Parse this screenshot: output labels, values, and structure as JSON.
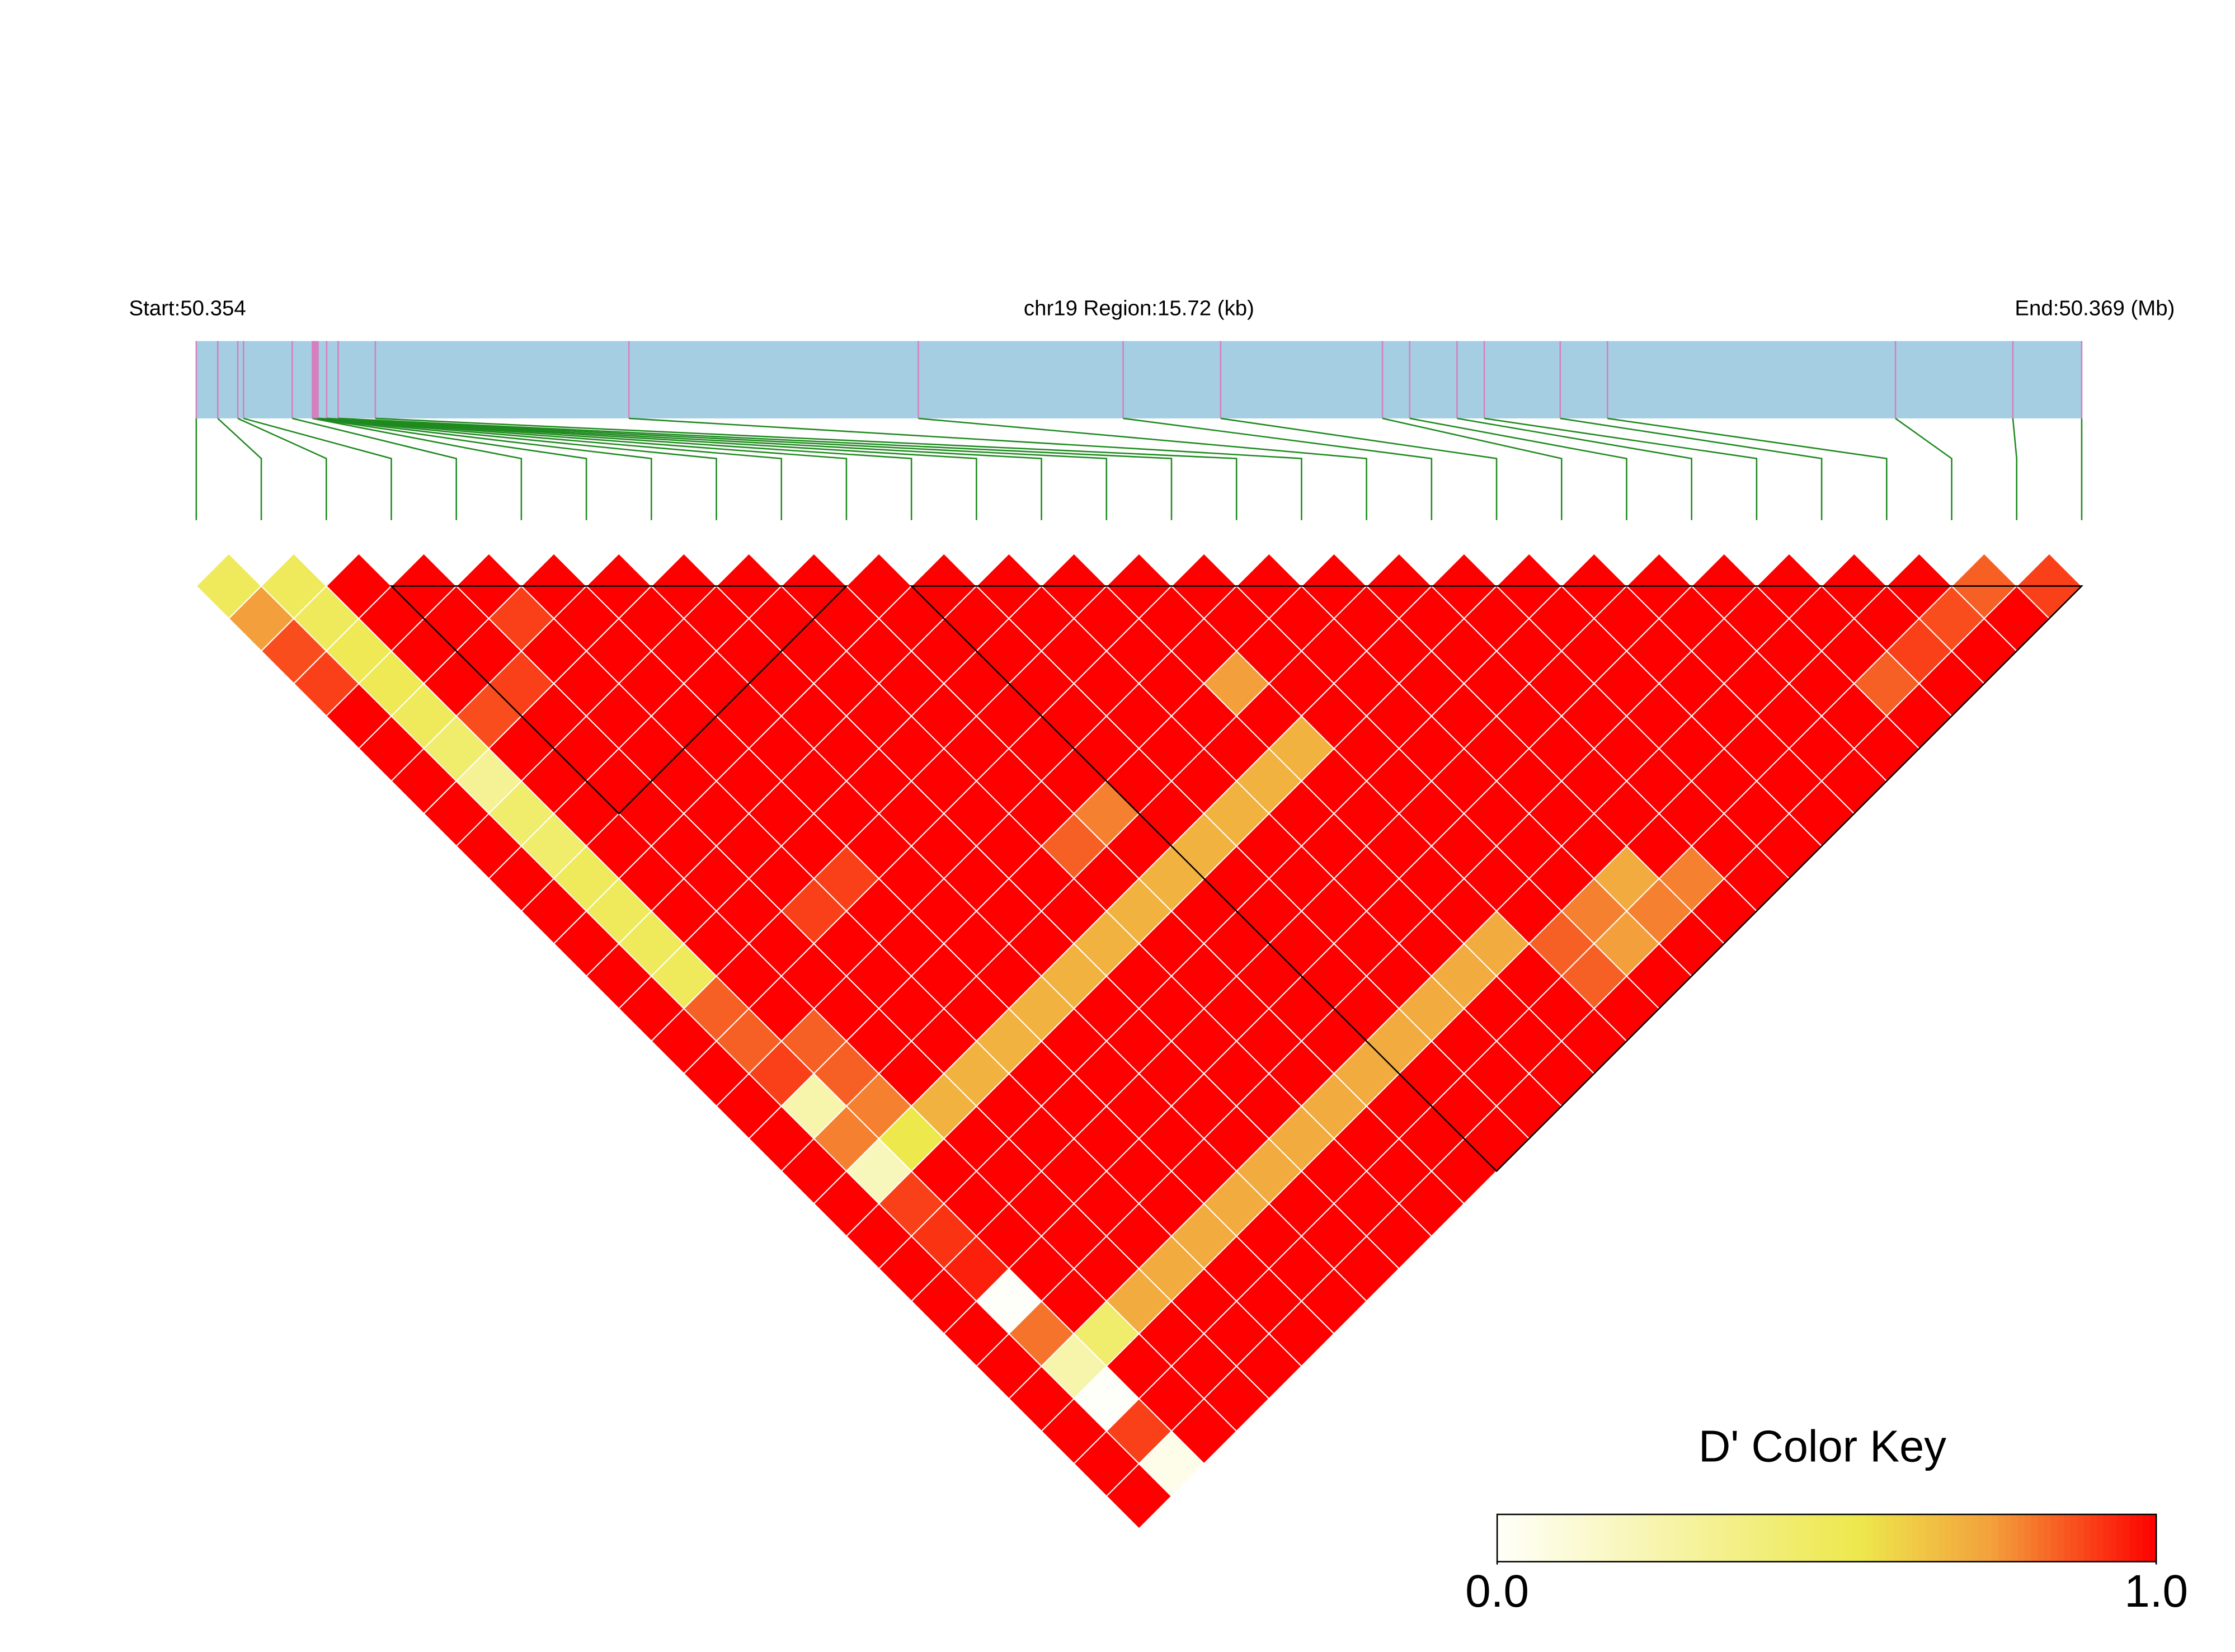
{
  "chart_data": {
    "type": "ld_heatmap",
    "start_label": "Start:50.354",
    "region_label": "chr19 Region:15.72 (kb)",
    "end_label": "End:50.369 (Mb)",
    "legend_title": "D' Color Key",
    "xlim": [
      0,
      15.72
    ],
    "snp_positions_kb": [
      0,
      0.179,
      0.346,
      0.394,
      0.8,
      0.968,
      0.974,
      0.98,
      0.985,
      0.991,
      0.997,
      1.003,
      1.009,
      1.015,
      1.087,
      1.183,
      1.493,
      3.607,
      6.02,
      7.728,
      8.541,
      9.89,
      10.117,
      10.512,
      10.739,
      11.372,
      11.766,
      14.167,
      15.146,
      15.72
    ],
    "track_color": "#a6cee3",
    "snp_line_color": "#d67fbf",
    "connector_color": "#1f8a1f",
    "blocks": [
      [
        3,
        10
      ],
      [
        11,
        29
      ]
    ],
    "clim": [
      0,
      1
    ],
    "cticks": [
      {
        "value": 0,
        "label": "0.0"
      },
      {
        "value": 1,
        "label": "1.0"
      }
    ],
    "colors": [
      "#fffffa",
      "#ede84c",
      "#f3a03c",
      "#fe0000"
    ],
    "color_stops": [
      0,
      0.55,
      0.75,
      1
    ],
    "dprime": [
      [
        0.5,
        0.75,
        0.88,
        0.9,
        1,
        1,
        1,
        1,
        1,
        1,
        1,
        1,
        1,
        1,
        1,
        1,
        1,
        1,
        1,
        1,
        1,
        1,
        1,
        1,
        1,
        1,
        1,
        1,
        1
      ],
      [
        0.5,
        0.5,
        0.52,
        0.52,
        0.5,
        0.45,
        0.32,
        0.45,
        0.45,
        0.5,
        0.5,
        0.5,
        0.5,
        0.85,
        0.85,
        0.9,
        0.25,
        0.8,
        0.2,
        0.9,
        0.92,
        0.95,
        0,
        0.82,
        0.25,
        0,
        0.9,
        0.05
      ],
      [
        1,
        1,
        1,
        1,
        0.88,
        1,
        1,
        1,
        1,
        1,
        1,
        1,
        1,
        1,
        0.85,
        0.85,
        0.8,
        0.55,
        1,
        1,
        1,
        1,
        1,
        0.45,
        1,
        1,
        1
      ],
      [
        1,
        1,
        1,
        0.9,
        1,
        1,
        1,
        1,
        1,
        1,
        1,
        1,
        1,
        1,
        1,
        1,
        0.7,
        1,
        1,
        1,
        1,
        1,
        0.72,
        1,
        1,
        1
      ],
      [
        1,
        0.9,
        1,
        1,
        1,
        1,
        1,
        1,
        1,
        1,
        0.9,
        1,
        1,
        1,
        1,
        0.7,
        1,
        1,
        1,
        1,
        1,
        0.72,
        1,
        1,
        1
      ],
      [
        1,
        1,
        1,
        1,
        1,
        1,
        1,
        1,
        1,
        0.9,
        1,
        1,
        1,
        1,
        0.7,
        1,
        1,
        1,
        1,
        1,
        0.72,
        1,
        1,
        1
      ],
      [
        1,
        1,
        1,
        1,
        1,
        1,
        1,
        1,
        1,
        1,
        1,
        1,
        1,
        0.7,
        1,
        1,
        1,
        1,
        1,
        0.72,
        1,
        1,
        1
      ],
      [
        1,
        1,
        1,
        1,
        1,
        1,
        1,
        1,
        1,
        1,
        1,
        1,
        0.7,
        1,
        1,
        1,
        1,
        1,
        0.72,
        1,
        1,
        1
      ],
      [
        1,
        1,
        1,
        1,
        1,
        1,
        1,
        1,
        1,
        1,
        1,
        0.7,
        1,
        1,
        1,
        1,
        1,
        0.72,
        1,
        1,
        1
      ],
      [
        1,
        1,
        1,
        1,
        1,
        1,
        1,
        1,
        0.85,
        1,
        0.7,
        1,
        1,
        1,
        1,
        1,
        0.72,
        1,
        1,
        1
      ],
      [
        1,
        1,
        1,
        1,
        1,
        1,
        1,
        0.8,
        1,
        0.7,
        1,
        1,
        1,
        1,
        1,
        0.72,
        1,
        1,
        1
      ],
      [
        1,
        1,
        1,
        1,
        1,
        1,
        1,
        1,
        0.7,
        1,
        1,
        1,
        1,
        1,
        0.72,
        1,
        1,
        1
      ],
      [
        1,
        1,
        1,
        1,
        1,
        1,
        1,
        0.7,
        1,
        1,
        1,
        1,
        1,
        0.72,
        1,
        1,
        1
      ],
      [
        1,
        1,
        1,
        1,
        1,
        1,
        0.7,
        1,
        1,
        1,
        1,
        1,
        0.72,
        1,
        1,
        1
      ],
      [
        1,
        1,
        1,
        0.75,
        1,
        0.7,
        1,
        1,
        1,
        1,
        1,
        0.72,
        1,
        1,
        1
      ],
      [
        1,
        1,
        1,
        1,
        1,
        1,
        1,
        1,
        1,
        1,
        1,
        0.85,
        0.85,
        1
      ],
      [
        1,
        1,
        1,
        1,
        1,
        1,
        1,
        1,
        1,
        1,
        0.8,
        0.75,
        1
      ],
      [
        1,
        1,
        1,
        1,
        1,
        1,
        1,
        1,
        1,
        0.72,
        0.8,
        1
      ],
      [
        1,
        1,
        1,
        1,
        1,
        1,
        1,
        1,
        1,
        0.8,
        1
      ],
      [
        1,
        1,
        1,
        1,
        1,
        1,
        1,
        1,
        1,
        1
      ],
      [
        1,
        1,
        1,
        1,
        1,
        1,
        1,
        1,
        1
      ],
      [
        1,
        1,
        1,
        1,
        1,
        1,
        1,
        1
      ],
      [
        1,
        1,
        1,
        1,
        1,
        1,
        1
      ],
      [
        1,
        1,
        1,
        1,
        1,
        1
      ],
      [
        1,
        1,
        1,
        0.85,
        1
      ],
      [
        1,
        1,
        0.9,
        1
      ],
      [
        1,
        0.88,
        1
      ],
      [
        0.85,
        1
      ],
      [
        0.9
      ]
    ]
  }
}
